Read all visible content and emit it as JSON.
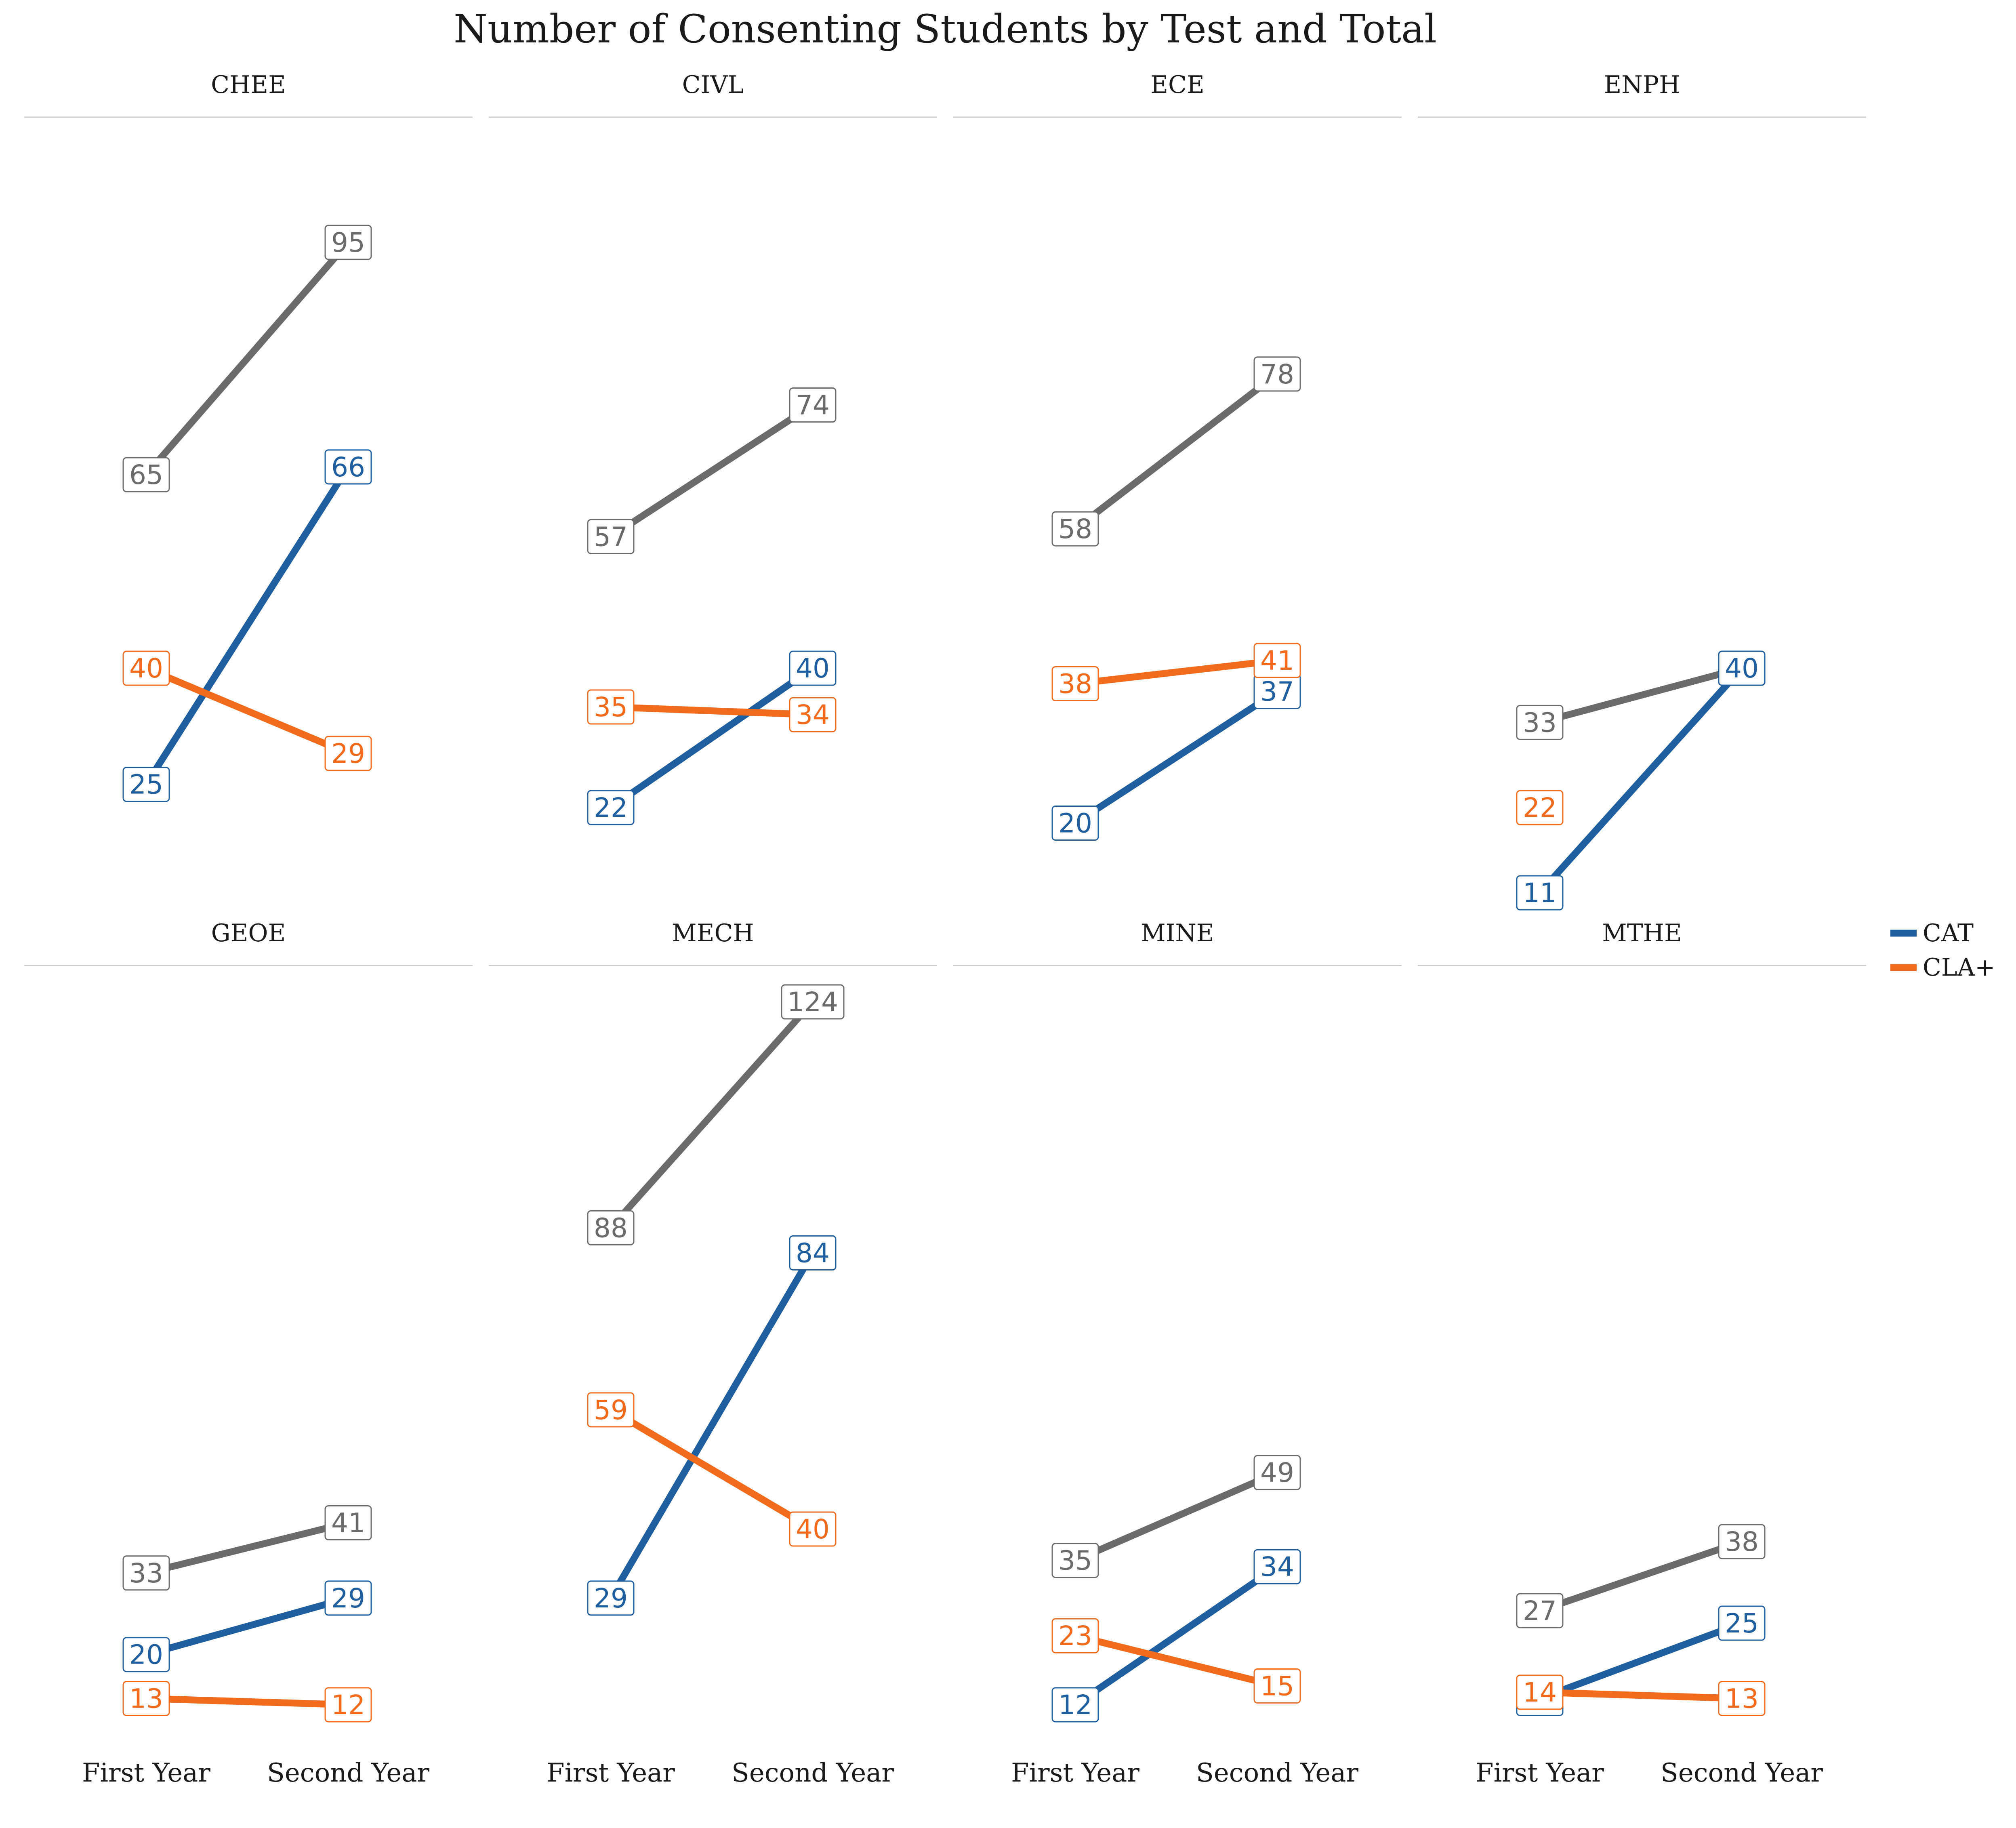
{
  "chart_data": {
    "type": "line",
    "title": "Number of Consenting Students by Test and Total",
    "x": [
      "First Year",
      "Second Year"
    ],
    "legend": {
      "position": "right",
      "entries": [
        {
          "name": "CAT",
          "color": "#1f5f9f"
        },
        {
          "name": "CLA+",
          "color": "#f26b1d"
        }
      ]
    },
    "colors": {
      "CAT": "#1f5f9f",
      "CLA+": "#f26b1d",
      "Total": "#6b6b6b",
      "strip_line": "#cccccc"
    },
    "grid": false,
    "facets": [
      {
        "label": "CHEE",
        "series": [
          {
            "key": "Total",
            "values": [
              65,
              95
            ]
          },
          {
            "key": "CAT",
            "values": [
              25,
              66
            ]
          },
          {
            "key": "CLA+",
            "values": [
              40,
              29
            ]
          }
        ]
      },
      {
        "label": "CIVL",
        "series": [
          {
            "key": "Total",
            "values": [
              57,
              74
            ]
          },
          {
            "key": "CAT",
            "values": [
              22,
              40
            ]
          },
          {
            "key": "CLA+",
            "values": [
              35,
              34
            ]
          }
        ]
      },
      {
        "label": "ECE",
        "series": [
          {
            "key": "Total",
            "values": [
              58,
              78
            ]
          },
          {
            "key": "CAT",
            "values": [
              20,
              37
            ]
          },
          {
            "key": "CLA+",
            "values": [
              38,
              41
            ]
          }
        ]
      },
      {
        "label": "ENPH",
        "series": [
          {
            "key": "Total",
            "values": [
              33,
              40
            ]
          },
          {
            "key": "CAT",
            "values": [
              11,
              40
            ]
          },
          {
            "key": "CLA+",
            "values": [
              22,
              null
            ]
          }
        ]
      },
      {
        "label": "GEOE",
        "series": [
          {
            "key": "Total",
            "values": [
              33,
              41
            ]
          },
          {
            "key": "CAT",
            "values": [
              20,
              29
            ]
          },
          {
            "key": "CLA+",
            "values": [
              13,
              12
            ]
          }
        ]
      },
      {
        "label": "MECH",
        "series": [
          {
            "key": "Total",
            "values": [
              88,
              124
            ]
          },
          {
            "key": "CAT",
            "values": [
              29,
              84
            ]
          },
          {
            "key": "CLA+",
            "values": [
              59,
              40
            ]
          }
        ]
      },
      {
        "label": "MINE",
        "series": [
          {
            "key": "Total",
            "values": [
              35,
              49
            ]
          },
          {
            "key": "CAT",
            "values": [
              12,
              34
            ]
          },
          {
            "key": "CLA+",
            "values": [
              23,
              15
            ]
          }
        ]
      },
      {
        "label": "MTHE",
        "series": [
          {
            "key": "Total",
            "values": [
              27,
              38
            ]
          },
          {
            "key": "CAT",
            "values": [
              13,
              25
            ]
          },
          {
            "key": "CLA+",
            "values": [
              14,
              13
            ]
          }
        ]
      }
    ]
  }
}
